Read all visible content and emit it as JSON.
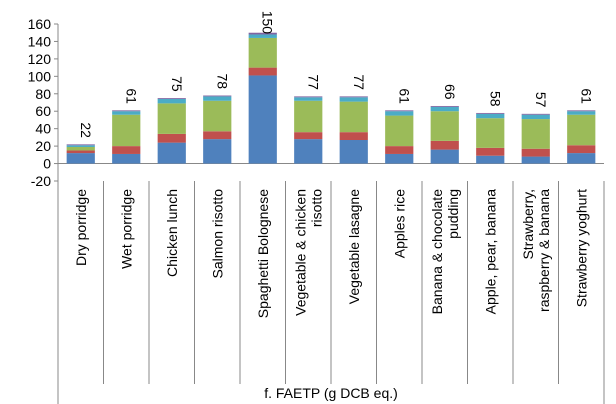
{
  "chart_data": {
    "type": "bar",
    "stacked": true,
    "categories": [
      "Dry porridge",
      "Wet porridge",
      "Chicken lunch",
      "Salmon risotto",
      "Spaghetti Bolognese",
      "Vegetable & chicken risotto",
      "Vegetable lasagne",
      "Apples rice",
      "Banana & chocolate pudding",
      "Apple, pear, banana",
      "Strawberry, raspberry & banana",
      "Strawberry yoghurt"
    ],
    "series": [
      {
        "color": "#4F81BD",
        "values": [
          12,
          11,
          24,
          28,
          101,
          28,
          27,
          11,
          16,
          9,
          8,
          12
        ]
      },
      {
        "color": "#C0504D",
        "values": [
          3,
          9,
          10,
          9,
          9,
          8,
          9,
          9,
          10,
          9,
          9,
          9
        ]
      },
      {
        "color": "#9BBB59",
        "values": [
          4,
          36,
          35,
          35,
          34,
          36,
          35,
          35,
          34,
          34,
          34,
          35
        ]
      },
      {
        "color": "#4BACC6",
        "values": [
          2,
          4,
          5,
          5,
          4,
          4,
          5,
          5,
          5,
          5,
          5,
          4
        ]
      },
      {
        "color": "#8064A2",
        "values": [
          1,
          1,
          1,
          1,
          2,
          1,
          1,
          1,
          1,
          1,
          1,
          1
        ]
      }
    ],
    "totals": [
      22,
      61,
      75,
      78,
      150,
      77,
      77,
      61,
      66,
      58,
      57,
      61
    ],
    "ylim": [
      -20,
      160
    ],
    "yticks": [
      -20,
      0,
      20,
      40,
      60,
      80,
      100,
      120,
      140,
      160
    ],
    "ylabel": "",
    "group_label": "f. FAETP (g DCB eq.)",
    "grid": false,
    "legend": "none"
  }
}
